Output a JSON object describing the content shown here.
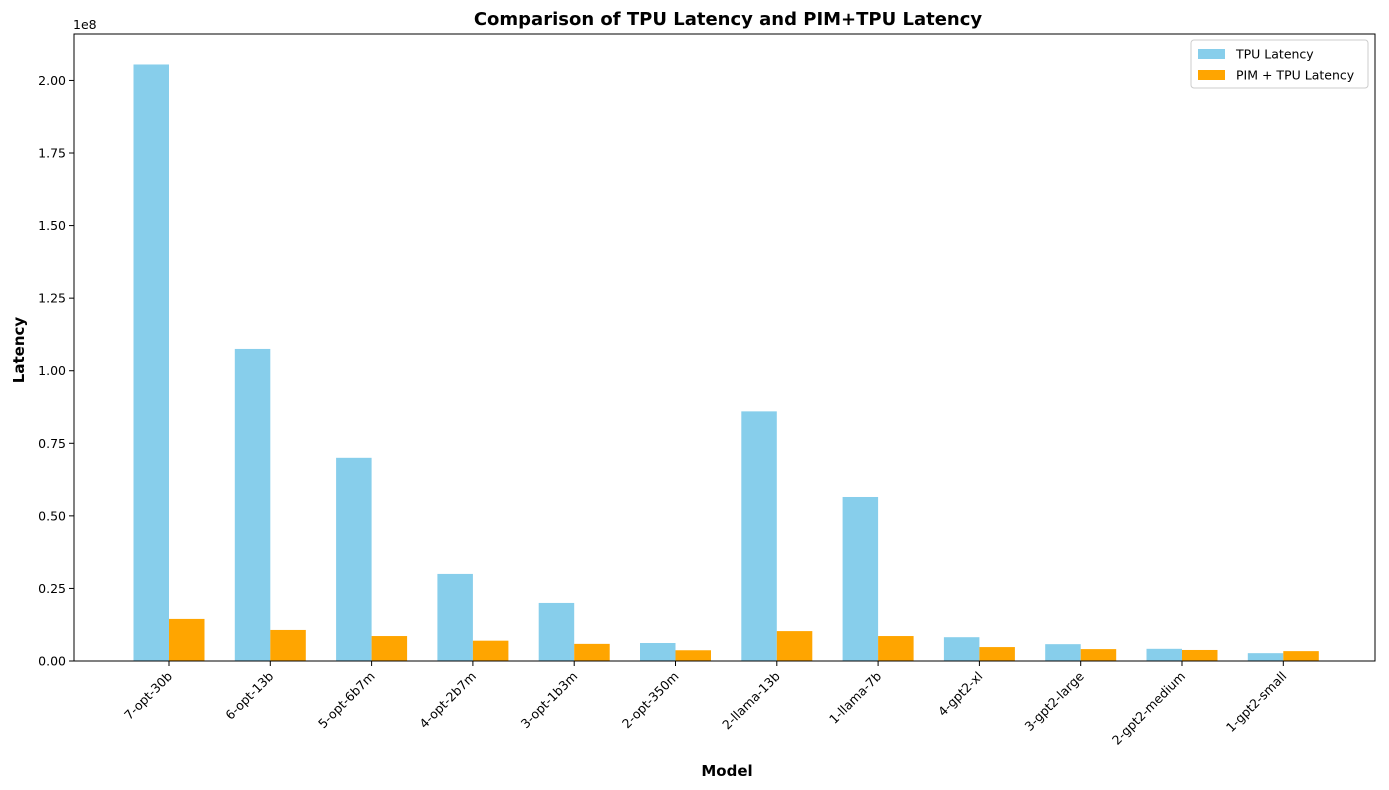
{
  "chart_data": {
    "type": "bar",
    "title": "Comparison of TPU Latency and PIM+TPU Latency",
    "xlabel": "Model",
    "ylabel": "Latency",
    "y_offset_text": "1e8",
    "ylim": [
      0,
      216000000
    ],
    "y_ticks": [
      0,
      25000000,
      50000000,
      75000000,
      100000000,
      125000000,
      150000000,
      175000000,
      200000000
    ],
    "y_tick_labels": [
      "0.00",
      "0.25",
      "0.50",
      "0.75",
      "1.00",
      "1.25",
      "1.50",
      "1.75",
      "2.00"
    ],
    "categories": [
      "7-opt-30b",
      "6-opt-13b",
      "5-opt-6b7m",
      "4-opt-2b7m",
      "3-opt-1b3m",
      "2-opt-350m",
      "2-llama-13b",
      "1-llama-7b",
      "4-gpt2-xl",
      "3-gpt2-large",
      "2-gpt2-medium",
      "1-gpt2-small"
    ],
    "series": [
      {
        "name": "TPU Latency",
        "color": "#87ceeb",
        "values": [
          205500000,
          107500000,
          70000000,
          30000000,
          20000000,
          6200000,
          86000000,
          56500000,
          8200000,
          5800000,
          4200000,
          2700000
        ]
      },
      {
        "name": "PIM + TPU Latency",
        "color": "#ffa500",
        "values": [
          14500000,
          10700000,
          8600000,
          7000000,
          5900000,
          3700000,
          10300000,
          8600000,
          4800000,
          4100000,
          3800000,
          3400000
        ]
      }
    ],
    "legend_position": "top-right",
    "grid": false
  }
}
